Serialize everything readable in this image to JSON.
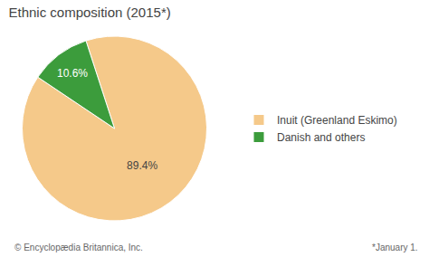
{
  "chart_data": {
    "type": "pie",
    "title": "Ethnic composition (2015*)",
    "categories": [
      "Inuit (Greenland Eskimo)",
      "Danish and others"
    ],
    "values": [
      89.4,
      10.6
    ],
    "value_labels": [
      "89.4%",
      "10.6%"
    ],
    "data_labels": true,
    "colors": [
      "#F5C98A",
      "#3C9C3C"
    ],
    "legend": "right",
    "annotations": [
      "© Encyclopædia Britannica, Inc.",
      "*January 1."
    ]
  }
}
